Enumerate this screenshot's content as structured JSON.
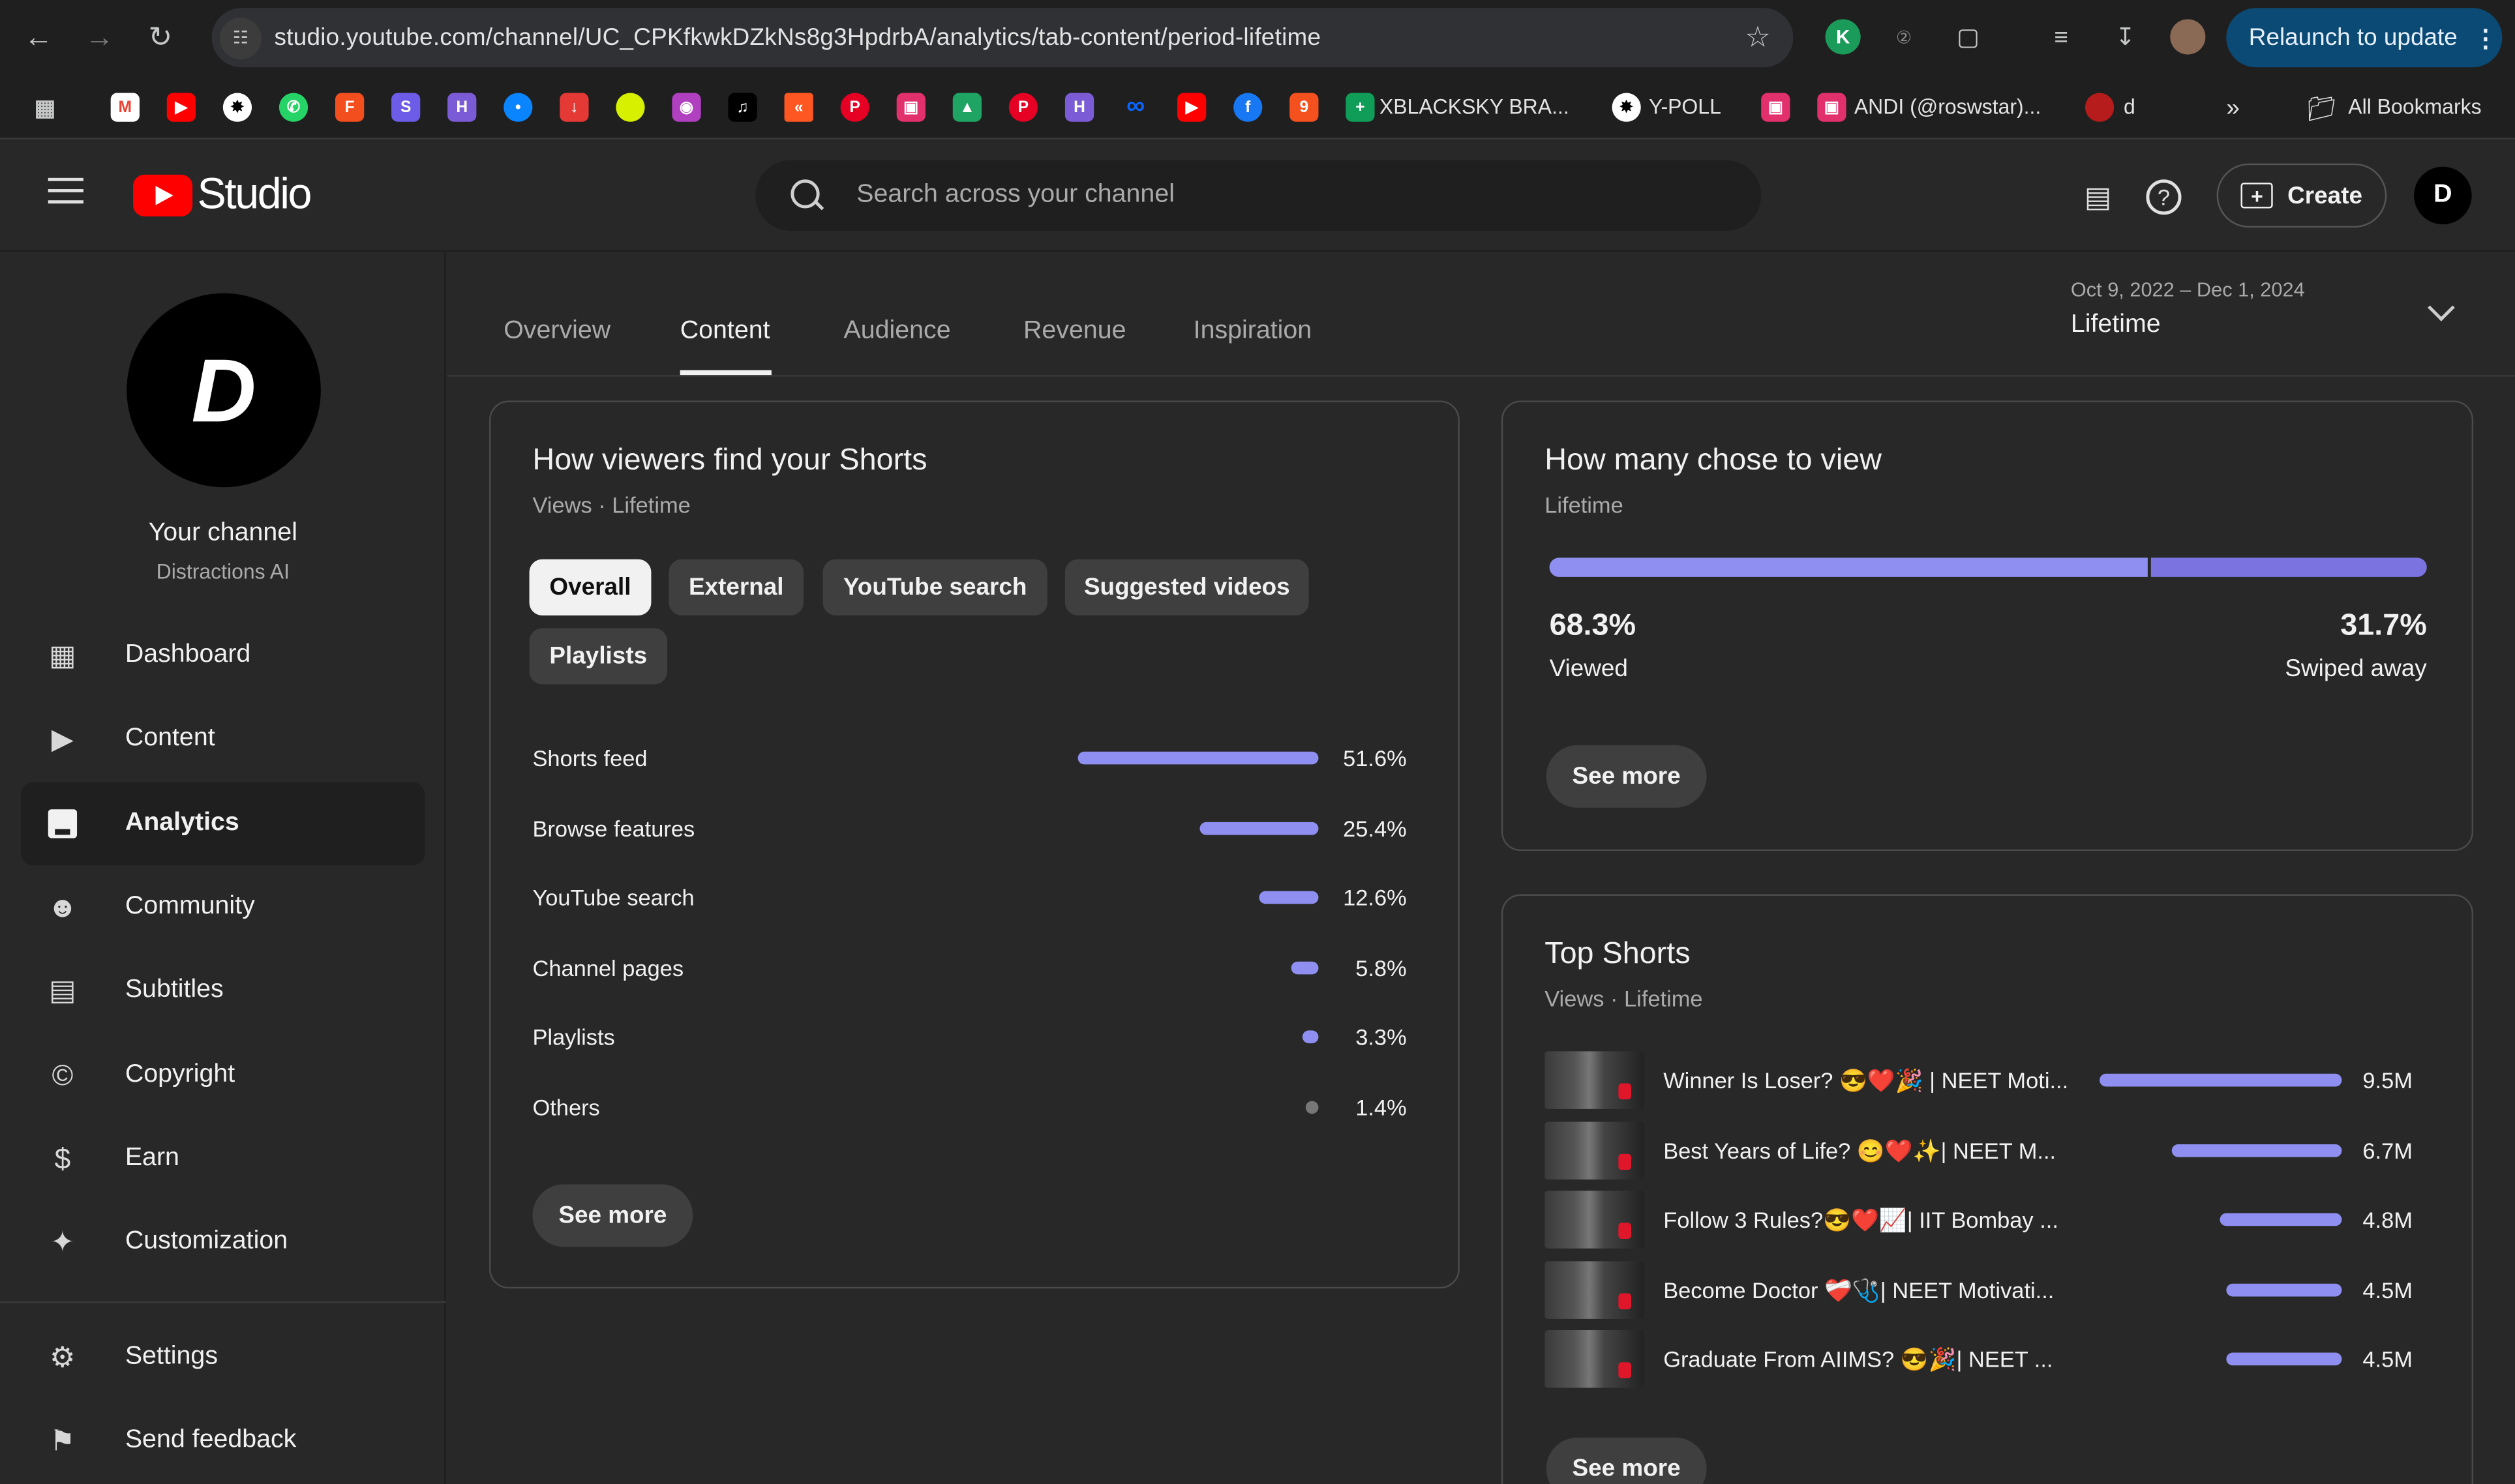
{
  "browser": {
    "url": "studio.youtube.com/channel/UC_CPKfkwkDZkNs8g3HpdrbA/analytics/tab-content/period-lifetime",
    "relaunch_label": "Relaunch to update",
    "bookmarks": {
      "xblacksky": "XBLACKSKY BRA...",
      "ypoll": "Y-POLL",
      "andi": "ANDI (@roswstar)...",
      "d": "d",
      "all": "All Bookmarks"
    }
  },
  "header": {
    "logo_text": "Studio",
    "search_placeholder": "Search across your channel",
    "create_label": "Create",
    "avatar_letter": "D"
  },
  "sidebar": {
    "channel_avatar_letter": "D",
    "channel_title": "Your channel",
    "channel_name": "Distractions AI",
    "items": [
      {
        "label": "Dashboard",
        "icon": "dashboard-icon"
      },
      {
        "label": "Content",
        "icon": "content-icon"
      },
      {
        "label": "Analytics",
        "icon": "analytics-icon",
        "active": true
      },
      {
        "label": "Community",
        "icon": "community-icon"
      },
      {
        "label": "Subtitles",
        "icon": "subtitles-icon"
      },
      {
        "label": "Copyright",
        "icon": "copyright-icon"
      },
      {
        "label": "Earn",
        "icon": "earn-icon"
      },
      {
        "label": "Customization",
        "icon": "customization-icon"
      },
      {
        "label": "Settings",
        "icon": "settings-icon"
      },
      {
        "label": "Send feedback",
        "icon": "feedback-icon"
      }
    ]
  },
  "tabs": {
    "items": [
      "Overview",
      "Content",
      "Audience",
      "Revenue",
      "Inspiration"
    ],
    "active": "Content",
    "date_range": "Oct 9, 2022 – Dec 1, 2024",
    "period": "Lifetime"
  },
  "traffic_card": {
    "title": "How viewers find your Shorts",
    "subtitle": "Views · Lifetime",
    "chips": [
      "Overall",
      "External",
      "YouTube search",
      "Suggested videos",
      "Playlists"
    ],
    "selected_chip": "Overall",
    "sources": [
      {
        "label": "Shorts feed",
        "value": "51.6%",
        "fraction": 0.516
      },
      {
        "label": "Browse features",
        "value": "25.4%",
        "fraction": 0.254
      },
      {
        "label": "YouTube search",
        "value": "12.6%",
        "fraction": 0.126
      },
      {
        "label": "Channel pages",
        "value": "5.8%",
        "fraction": 0.058
      },
      {
        "label": "Playlists",
        "value": "3.3%",
        "fraction": 0.033
      },
      {
        "label": "Others",
        "value": "1.4%",
        "fraction": 0.014
      }
    ],
    "see_more": "See more"
  },
  "view_card": {
    "title": "How many chose to view",
    "subtitle": "Lifetime",
    "viewed_pct": "68.3%",
    "viewed_label": "Viewed",
    "viewed_fraction": 0.683,
    "swiped_pct": "31.7%",
    "swiped_label": "Swiped away",
    "see_more": "See more",
    "colors": {
      "viewed": "#8e8ff0",
      "swiped": "#7b74e0"
    }
  },
  "top_shorts": {
    "title": "Top Shorts",
    "subtitle": "Views · Lifetime",
    "items": [
      {
        "title": "Winner Is Loser? 😎❤️🎉 | NEET Moti...",
        "views": "9.5M",
        "value": 9.5
      },
      {
        "title": "Best Years of Life? 😊❤️✨| NEET M...",
        "views": "6.7M",
        "value": 6.7
      },
      {
        "title": "Follow 3 Rules?😎❤️📈| IIT Bombay ...",
        "views": "4.8M",
        "value": 4.8
      },
      {
        "title": "Become Doctor ❤️‍🩹🩺| NEET Motivati...",
        "views": "4.5M",
        "value": 4.5
      },
      {
        "title": "Graduate From AIIMS? 😎🎉| NEET ...",
        "views": "4.5M",
        "value": 4.5
      }
    ],
    "see_more": "See more"
  }
}
